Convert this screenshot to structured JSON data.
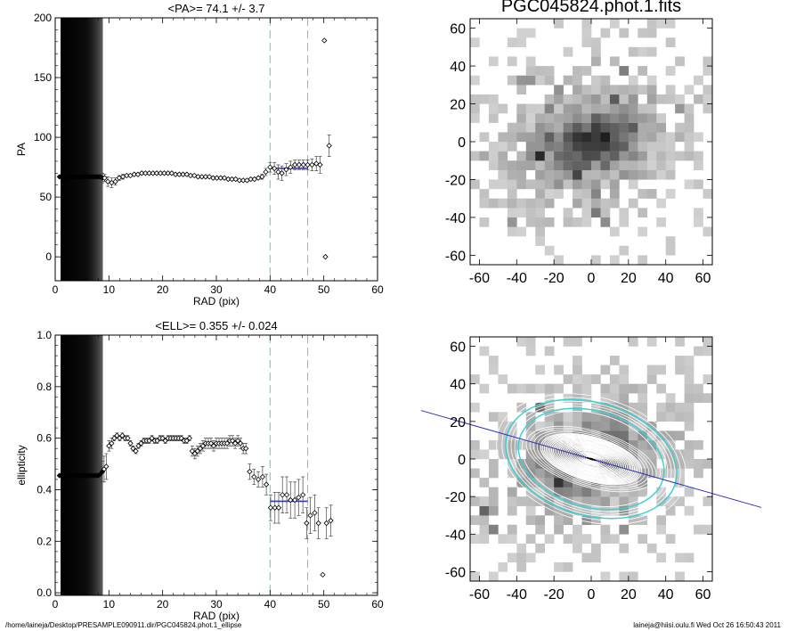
{
  "footer": {
    "path": "/home/laineja/Desktop/PRESAMPLE090911.dir/PGC045824.phot.1_ellipse",
    "credit": "laineja@hiisi.oulu.fi  Wed Oct 26 16:50:43 2011"
  },
  "chart_data": [
    {
      "id": "pa",
      "type": "scatter",
      "title": "<PA>=  74.1 +/-   3.7",
      "xlabel": "RAD (pix)",
      "ylabel": "PA",
      "xlim": [
        0,
        60
      ],
      "ylim": [
        -20,
        200
      ],
      "xticks": [
        0,
        10,
        20,
        30,
        40,
        50,
        60
      ],
      "yticks": [
        0,
        50,
        100,
        150,
        200
      ],
      "vlines": [
        40,
        47
      ],
      "fit": {
        "x": [
          40,
          47
        ],
        "y": 74.1
      },
      "dark_band": [
        1,
        8.8
      ],
      "x": [
        0.8,
        1.2,
        1.6,
        2.0,
        2.4,
        2.8,
        3.2,
        3.6,
        4.0,
        4.4,
        4.8,
        5.2,
        5.6,
        6.0,
        6.4,
        6.8,
        7.2,
        7.6,
        8.0,
        8.4,
        8.8,
        9.2,
        9.8,
        10.5,
        11.2,
        11.9,
        12.6,
        13.3,
        14.0,
        14.7,
        15.4,
        16.1,
        16.8,
        17.5,
        18.2,
        18.9,
        19.6,
        20.3,
        21.0,
        21.7,
        22.4,
        23.1,
        23.8,
        24.5,
        25.2,
        25.9,
        26.6,
        27.3,
        28.0,
        28.7,
        29.4,
        30.1,
        30.8,
        31.5,
        32.2,
        32.9,
        33.6,
        34.3,
        35.0,
        35.7,
        36.4,
        37.1,
        37.8,
        38.5,
        39.2,
        40.0,
        40.8,
        41.5,
        42.2,
        43.0,
        43.8,
        44.6,
        45.4,
        46.2,
        47.0,
        47.8,
        48.6,
        49.3,
        50.1,
        50.3,
        51.0
      ],
      "y": [
        67,
        67,
        67,
        67,
        67,
        67,
        67,
        67,
        67,
        67,
        67,
        67,
        67,
        67,
        67,
        67,
        67,
        67,
        67,
        67,
        66,
        66,
        63,
        62,
        63,
        66,
        67,
        68,
        68,
        69,
        69,
        70,
        70,
        70,
        70,
        70,
        70,
        70,
        70,
        70,
        69,
        69,
        69,
        69,
        68,
        68,
        67,
        67,
        67,
        67,
        66,
        66,
        66,
        66,
        65,
        65,
        65,
        64,
        64,
        64,
        65,
        65,
        66,
        67,
        71,
        75,
        74,
        71,
        70,
        73,
        75,
        77,
        77,
        77,
        77,
        77,
        78,
        77,
        181,
        0,
        93
      ],
      "err": [
        0,
        0,
        0,
        0,
        0,
        0,
        0,
        0,
        0,
        0,
        0,
        0,
        0,
        0,
        0,
        0,
        0,
        0,
        0,
        0,
        4,
        3,
        4,
        4,
        3,
        2,
        2,
        1,
        1,
        1,
        1,
        1,
        1,
        1,
        1,
        1,
        1,
        1,
        1,
        1,
        1,
        1,
        1,
        1,
        1,
        1,
        1,
        1,
        1,
        1,
        1,
        1,
        1,
        1,
        1,
        1,
        1,
        1,
        1,
        1,
        1,
        1,
        1,
        2,
        3,
        4,
        5,
        6,
        6,
        5,
        5,
        4,
        4,
        4,
        4,
        5,
        6,
        7,
        0,
        0,
        9
      ]
    },
    {
      "id": "ell",
      "type": "scatter",
      "title": "<ELL>= 0.355 +/-  0.024",
      "xlabel": "RAD (pix)",
      "ylabel": "ellipticity",
      "xlim": [
        0,
        60
      ],
      "ylim": [
        -0.01,
        1.0
      ],
      "xticks": [
        0,
        10,
        20,
        30,
        40,
        50,
        60
      ],
      "yticks": [
        0.0,
        0.2,
        0.4,
        0.6,
        0.8,
        1.0
      ],
      "ytick_labels": [
        "0.0",
        "0.2",
        "0.4",
        "0.6",
        "0.8",
        "1.0"
      ],
      "vlines": [
        40,
        47
      ],
      "fit": {
        "x": [
          40,
          47
        ],
        "y": 0.355
      },
      "dark_band": [
        1,
        8.8
      ],
      "x": [
        0.8,
        1.2,
        1.6,
        2.0,
        2.4,
        2.8,
        3.2,
        3.6,
        4.0,
        4.4,
        4.8,
        5.2,
        5.6,
        6.0,
        6.4,
        6.8,
        7.2,
        7.6,
        8.0,
        8.4,
        8.8,
        9.1,
        9.5,
        10.0,
        10.5,
        11.0,
        11.5,
        12.0,
        12.5,
        13.0,
        13.5,
        14.0,
        14.5,
        15.0,
        15.5,
        16.0,
        16.5,
        17.0,
        17.5,
        18.0,
        18.5,
        19.0,
        19.5,
        20.0,
        20.5,
        21.0,
        21.5,
        22.0,
        22.5,
        23.0,
        23.5,
        24.0,
        24.5,
        25.0,
        25.5,
        26.0,
        26.5,
        27.0,
        27.5,
        28.0,
        28.5,
        29.0,
        29.5,
        30.0,
        30.5,
        31.0,
        31.5,
        32.0,
        32.5,
        33.0,
        33.5,
        34.0,
        34.5,
        35.0,
        35.5,
        36.2,
        37.0,
        37.8,
        38.6,
        39.3,
        40.1,
        40.9,
        41.6,
        42.3,
        43.1,
        43.8,
        44.6,
        45.3,
        46.1,
        46.8,
        47.5,
        48.3,
        49.0,
        49.8,
        50.5,
        51.3
      ],
      "y": [
        0.455,
        0.455,
        0.455,
        0.455,
        0.455,
        0.455,
        0.455,
        0.455,
        0.455,
        0.455,
        0.455,
        0.455,
        0.455,
        0.455,
        0.455,
        0.455,
        0.455,
        0.455,
        0.455,
        0.46,
        0.47,
        0.48,
        0.49,
        0.57,
        0.58,
        0.6,
        0.61,
        0.6,
        0.61,
        0.6,
        0.6,
        0.58,
        0.56,
        0.55,
        0.57,
        0.58,
        0.59,
        0.59,
        0.59,
        0.6,
        0.59,
        0.59,
        0.6,
        0.6,
        0.59,
        0.6,
        0.6,
        0.6,
        0.6,
        0.6,
        0.6,
        0.59,
        0.59,
        0.6,
        0.55,
        0.54,
        0.55,
        0.56,
        0.57,
        0.58,
        0.58,
        0.58,
        0.57,
        0.58,
        0.58,
        0.58,
        0.58,
        0.58,
        0.59,
        0.59,
        0.58,
        0.59,
        0.58,
        0.56,
        0.56,
        0.47,
        0.45,
        0.44,
        0.45,
        0.42,
        0.33,
        0.33,
        0.33,
        0.38,
        0.38,
        0.36,
        0.36,
        0.37,
        0.38,
        0.27,
        0.3,
        0.31,
        0.27,
        0.07,
        0.27,
        0.28
      ],
      "err": [
        0,
        0,
        0,
        0,
        0,
        0,
        0,
        0,
        0,
        0,
        0,
        0,
        0,
        0,
        0,
        0,
        0,
        0,
        0,
        0.03,
        0.04,
        0.05,
        0.05,
        0.02,
        0.02,
        0.01,
        0.01,
        0.01,
        0.01,
        0.01,
        0.01,
        0.01,
        0.01,
        0.01,
        0.01,
        0.01,
        0.01,
        0.01,
        0.01,
        0.01,
        0.01,
        0.01,
        0.01,
        0.01,
        0.01,
        0.01,
        0.01,
        0.01,
        0.01,
        0.01,
        0.01,
        0.01,
        0.01,
        0.01,
        0.02,
        0.02,
        0.02,
        0.02,
        0.02,
        0.02,
        0.02,
        0.02,
        0.02,
        0.02,
        0.02,
        0.02,
        0.02,
        0.02,
        0.02,
        0.02,
        0.02,
        0.02,
        0.02,
        0.02,
        0.02,
        0.03,
        0.03,
        0.03,
        0.04,
        0.04,
        0.05,
        0.06,
        0.06,
        0.07,
        0.07,
        0.07,
        0.07,
        0.07,
        0.07,
        0.06,
        0.07,
        0.07,
        0.06,
        0,
        0.06,
        0.06
      ]
    },
    {
      "id": "image",
      "type": "heatmap",
      "title": "PGC045824.phot.1.fits",
      "xlim": [
        -65,
        65
      ],
      "ylim": [
        -65,
        65
      ],
      "xticks": [
        -60,
        -40,
        -20,
        0,
        20,
        40,
        60
      ],
      "yticks": [
        -60,
        -40,
        -20,
        0,
        20,
        40,
        60
      ],
      "colormap": "grayscale-inverted",
      "galaxy": {
        "center": [
          0,
          0
        ],
        "pa_deg": 74.1,
        "ellipticity": 0.355
      }
    },
    {
      "id": "overlay",
      "type": "heatmap",
      "title": "",
      "xlim": [
        -65,
        65
      ],
      "ylim": [
        -65,
        65
      ],
      "xticks": [
        -60,
        -40,
        -20,
        0,
        20,
        40,
        60
      ],
      "yticks": [
        -60,
        -40,
        -20,
        0,
        20,
        40,
        60
      ],
      "colormap": "grayscale-inverted",
      "contour_color": "#ffffff",
      "fit_ellipse_color": "#40d0d0",
      "pa_line_color": "#3030c0",
      "ellipses": [
        {
          "sma": 40,
          "ell": 0.355,
          "pa": 74.1
        },
        {
          "sma": 47,
          "ell": 0.355,
          "pa": 74.1
        }
      ]
    }
  ]
}
